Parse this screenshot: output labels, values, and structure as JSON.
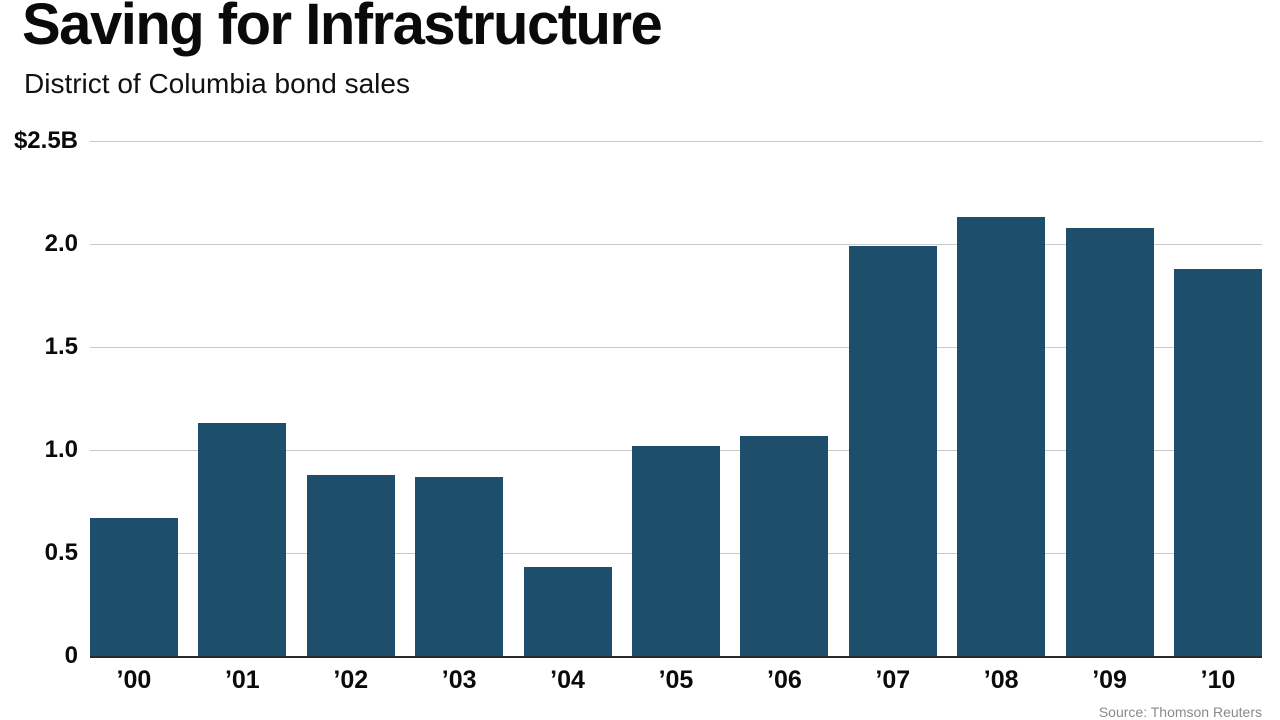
{
  "chart_data": {
    "type": "bar",
    "title": "Saving for Infrastructure",
    "subtitle": "District of Columbia bond sales",
    "categories": [
      "’00",
      "’01",
      "’02",
      "’03",
      "’04",
      "’05",
      "’06",
      "’07",
      "’08",
      "’09",
      "’10"
    ],
    "values": [
      0.67,
      1.13,
      0.88,
      0.87,
      0.43,
      1.02,
      1.07,
      1.99,
      2.13,
      2.08,
      1.88
    ],
    "unit": "billions of dollars",
    "ylim": [
      0,
      2.5
    ],
    "yticks": [
      {
        "value": 2.5,
        "label": "$2.5B"
      },
      {
        "value": 2.0,
        "label": "2.0"
      },
      {
        "value": 1.5,
        "label": "1.5"
      },
      {
        "value": 1.0,
        "label": "1.0"
      },
      {
        "value": 0.5,
        "label": "0.5"
      },
      {
        "value": 0,
        "label": "0"
      }
    ],
    "bar_color": "#1d4f6c",
    "grid": true,
    "legend": "none",
    "source": "Source: Thomson Reuters"
  }
}
